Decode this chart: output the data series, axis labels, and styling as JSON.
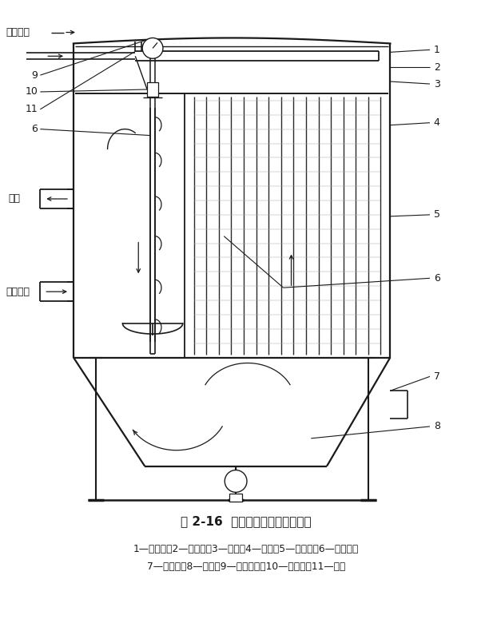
{
  "title": "图 2-16  长袋低压脉冲袋式除尘器",
  "caption_line1": "1—上箱体；2—喷吹管；3—花板；4—滤袋；5—中箱体；6—圆盘阀；",
  "caption_line2": "7—挡风板；8—灰斗；9—电动推杆；10—脉冲阀；11—气包",
  "label_ya": "压缩空气",
  "label_jq": "净气",
  "label_cs": "含尘气体",
  "bg_color": "#ffffff",
  "lc": "#1a1a1a"
}
